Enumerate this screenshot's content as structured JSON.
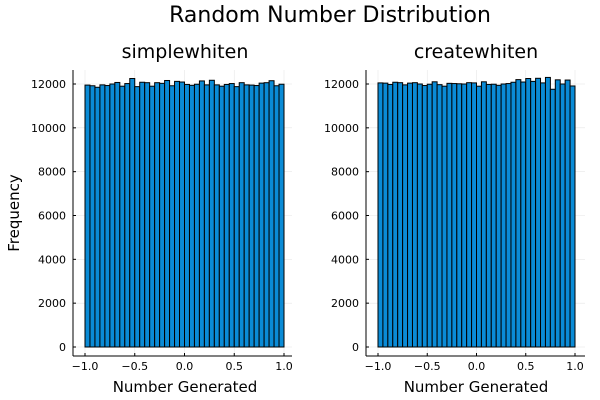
{
  "figure": {
    "title": "Random Number Distribution",
    "bar_color": "#0a8bd6",
    "edge_color": "#000000",
    "background": "#ffffff"
  },
  "chart_data": [
    {
      "type": "bar",
      "title": "simplewhiten",
      "xlabel": "Number Generated",
      "ylabel": "Frequency",
      "xlim": [
        -1.0,
        1.0
      ],
      "ylim": [
        0,
        12500
      ],
      "x_ticks": [
        -1.0,
        -0.5,
        0.0,
        0.5,
        1.0
      ],
      "x_tick_labels": [
        "−1.0",
        "−0.5",
        "0.0",
        "0.5",
        "1.0"
      ],
      "y_ticks": [
        0,
        2000,
        4000,
        6000,
        8000,
        10000,
        12000
      ],
      "y_tick_labels": [
        "0",
        "2000",
        "4000",
        "6000",
        "8000",
        "10000",
        "12000"
      ],
      "bin_width": 0.05,
      "bin_edges_start": -1.0,
      "values": [
        11950,
        11920,
        11850,
        11960,
        11930,
        12000,
        12070,
        11900,
        12020,
        12250,
        11880,
        12080,
        12060,
        11900,
        12060,
        12030,
        12160,
        11920,
        12120,
        12090,
        11980,
        11940,
        11990,
        12140,
        11960,
        12170,
        11960,
        11900,
        11980,
        12020,
        11880,
        12060,
        11960,
        11950,
        11930,
        12040,
        12060,
        12150,
        11920,
        11990
      ],
      "grid": true,
      "legend": "none"
    },
    {
      "type": "bar",
      "title": "createwhiten",
      "xlabel": "Number Generated",
      "ylabel": "",
      "xlim": [
        -1.0,
        1.0
      ],
      "ylim": [
        0,
        12500
      ],
      "x_ticks": [
        -1.0,
        -0.5,
        0.0,
        0.5,
        1.0
      ],
      "x_tick_labels": [
        "−1.0",
        "−0.5",
        "0.0",
        "0.5",
        "1.0"
      ],
      "y_ticks": [
        0,
        2000,
        4000,
        6000,
        8000,
        10000,
        12000
      ],
      "y_tick_labels": [
        "0",
        "2000",
        "4000",
        "6000",
        "8000",
        "10000",
        "12000"
      ],
      "bin_width": 0.05,
      "bin_edges_start": -1.0,
      "values": [
        12050,
        12040,
        11980,
        12080,
        12060,
        11960,
        12040,
        12060,
        12000,
        11930,
        11990,
        12100,
        11970,
        11900,
        12030,
        12020,
        12010,
        12000,
        12060,
        12050,
        11900,
        12100,
        11980,
        11990,
        11940,
        12000,
        12020,
        12080,
        12200,
        12090,
        12250,
        12120,
        12260,
        12050,
        12300,
        11760,
        12190,
        12000,
        12180,
        11910
      ],
      "grid": true,
      "legend": "none"
    }
  ]
}
